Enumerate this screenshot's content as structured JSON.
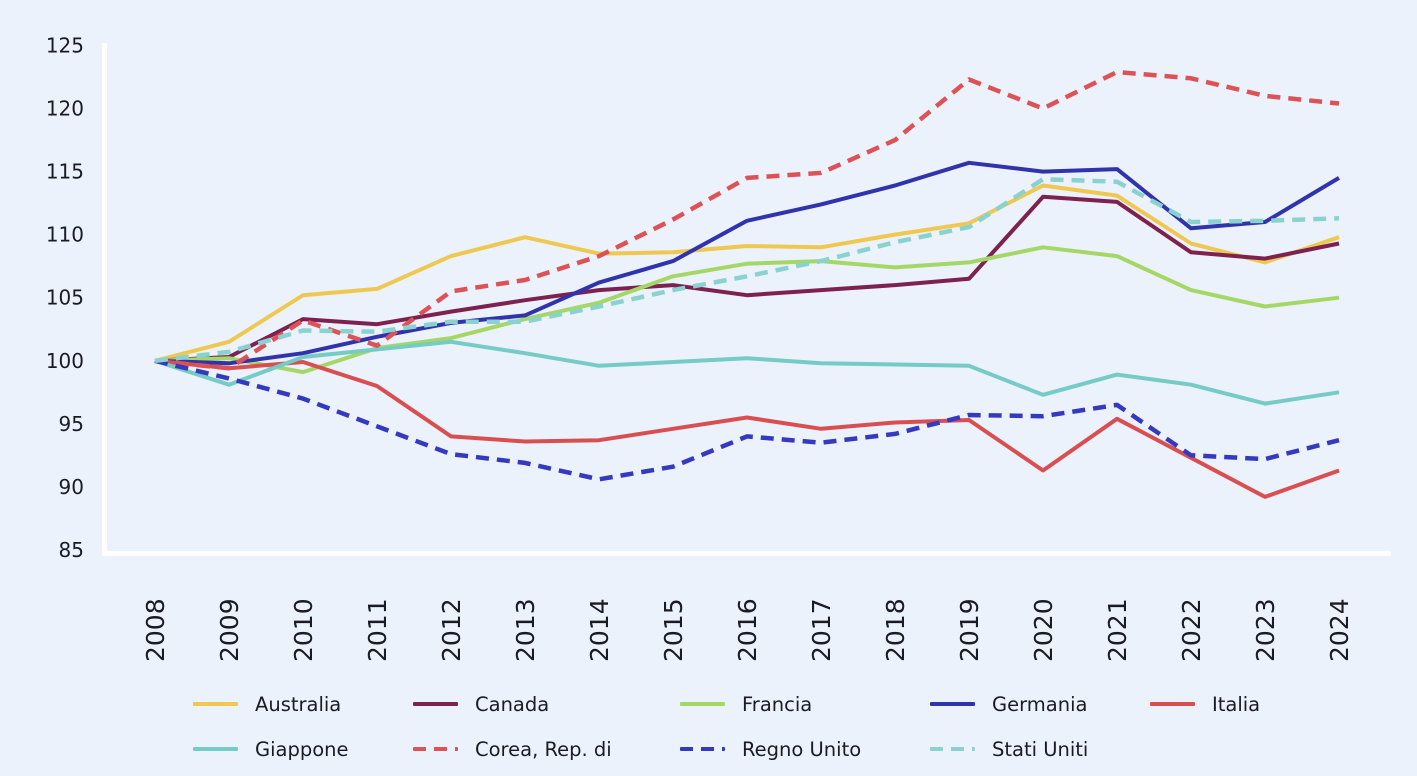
{
  "chart_data": {
    "type": "line",
    "title": "",
    "xlabel": "",
    "ylabel": "",
    "x": [
      2008,
      2009,
      2010,
      2011,
      2012,
      2013,
      2014,
      2015,
      2016,
      2017,
      2018,
      2019,
      2020,
      2021,
      2022,
      2023,
      2024
    ],
    "x_tick_labels": [
      "2008",
      "2009",
      "2010",
      "2011",
      "2012",
      "2013",
      "2014",
      "2015",
      "2016",
      "2017",
      "2018",
      "2019",
      "2020",
      "2021",
      "2022",
      "2023",
      "2024"
    ],
    "ylim": [
      85,
      125
    ],
    "yticks": [
      85,
      90,
      95,
      100,
      105,
      110,
      115,
      120,
      125
    ],
    "y_tick_labels": [
      "85",
      "90",
      "95",
      "100",
      "105",
      "110",
      "115",
      "120",
      "125"
    ],
    "grid": false,
    "legend_position": "bottom",
    "background_color": "#EBF2FB",
    "axis_color": "#FFFFFF",
    "text_color": "#1A1B23",
    "series": [
      {
        "name": "Australia",
        "color": "#EEC850",
        "dashed": false,
        "values": [
          100,
          101.5,
          105.2,
          105.7,
          108.3,
          109.8,
          108.5,
          108.6,
          109.1,
          109.0,
          110.0,
          110.9,
          113.9,
          113.1,
          109.3,
          107.8,
          109.8
        ]
      },
      {
        "name": "Canada",
        "color": "#7D2150",
        "dashed": false,
        "values": [
          100,
          100.3,
          103.3,
          102.9,
          103.9,
          104.8,
          105.6,
          106.0,
          105.2,
          105.6,
          106.0,
          106.5,
          113.0,
          112.6,
          108.6,
          108.1,
          109.3
        ]
      },
      {
        "name": "Francia",
        "color": "#A5D767",
        "dashed": false,
        "values": [
          100,
          100.2,
          99.1,
          101.0,
          101.8,
          103.3,
          104.6,
          106.7,
          107.7,
          107.9,
          107.4,
          107.8,
          109.0,
          108.3,
          105.6,
          104.3,
          105.0
        ]
      },
      {
        "name": "Germania",
        "color": "#3133AC",
        "dashed": false,
        "values": [
          100,
          99.8,
          100.6,
          101.9,
          103.0,
          103.6,
          106.2,
          107.9,
          111.1,
          112.4,
          113.9,
          115.7,
          115.0,
          115.2,
          110.5,
          111.0,
          114.5
        ]
      },
      {
        "name": "Italia",
        "color": "#D94F51",
        "dashed": false,
        "values": [
          100,
          99.4,
          99.9,
          98.0,
          94.0,
          93.6,
          93.7,
          94.6,
          95.5,
          94.6,
          95.1,
          95.3,
          91.3,
          95.4,
          92.3,
          89.2,
          91.3
        ]
      },
      {
        "name": "Giappone",
        "color": "#75CBC5",
        "dashed": false,
        "values": [
          100,
          98.1,
          100.3,
          100.9,
          101.5,
          100.6,
          99.6,
          99.9,
          100.2,
          99.8,
          99.7,
          99.6,
          97.3,
          98.9,
          98.1,
          96.6,
          97.5
        ]
      },
      {
        "name": "Corea, Rep. di",
        "color": "#DD5257",
        "dashed": true,
        "values": [
          100,
          99.4,
          103.2,
          101.2,
          105.5,
          106.4,
          108.3,
          111.2,
          114.5,
          114.9,
          117.5,
          122.3,
          120.0,
          122.9,
          122.4,
          121.0,
          120.4
        ]
      },
      {
        "name": "Regno Unito",
        "color": "#3539BF",
        "dashed": true,
        "values": [
          100,
          98.6,
          97.0,
          94.8,
          92.6,
          91.9,
          90.6,
          91.6,
          94.0,
          93.5,
          94.2,
          95.7,
          95.6,
          96.5,
          92.5,
          92.2,
          93.7
        ]
      },
      {
        "name": "Stati Uniti",
        "color": "#8AD2CF",
        "dashed": true,
        "values": [
          100,
          100.7,
          102.4,
          102.3,
          103.1,
          103.1,
          104.3,
          105.6,
          106.7,
          107.9,
          109.4,
          110.6,
          114.4,
          114.2,
          111.0,
          111.1,
          111.3
        ]
      }
    ]
  },
  "legend": {
    "rows": [
      [
        "Australia",
        "Canada",
        "Francia",
        "Germania",
        "Italia"
      ],
      [
        "Giappone",
        "Corea, Rep. di",
        "Regno Unito",
        "Stati Uniti"
      ]
    ]
  }
}
